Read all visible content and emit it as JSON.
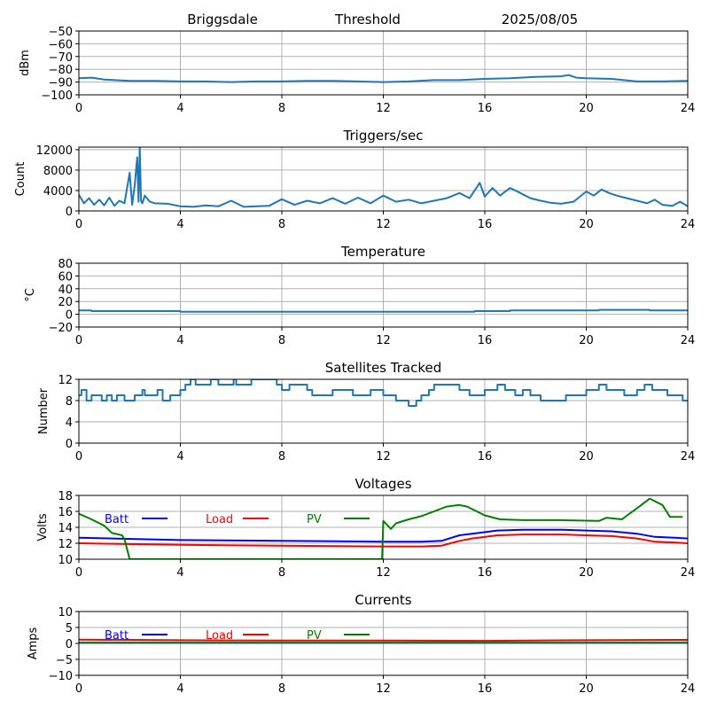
{
  "header": {
    "station": "Briggsdale",
    "mode": "Threshold",
    "date": "2025/08/05"
  },
  "chart_data": [
    {
      "type": "line",
      "title": "",
      "xlabel": "",
      "ylabel": "dBm",
      "xlim": [
        0,
        24
      ],
      "ylim": [
        -100,
        -50
      ],
      "xticks": [
        0,
        4,
        8,
        12,
        16,
        20,
        24
      ],
      "yticks": [
        -100,
        -90,
        -80,
        -70,
        -60,
        -50
      ],
      "grid": true,
      "series": [
        {
          "color": "#1f77b4",
          "x": [
            0,
            0.5,
            1,
            2,
            3,
            4,
            5,
            6,
            7,
            8,
            9,
            10,
            11,
            12,
            13,
            14,
            15,
            16,
            17,
            18,
            19,
            19.3,
            19.6,
            20,
            21,
            22,
            23,
            24
          ],
          "y": [
            -87,
            -86.5,
            -88,
            -89,
            -89,
            -89.5,
            -89.5,
            -90,
            -89.5,
            -89.5,
            -89,
            -89,
            -89.5,
            -90,
            -89.5,
            -88.5,
            -88.5,
            -87.5,
            -87,
            -86,
            -85.5,
            -84.5,
            -86.5,
            -87,
            -87.5,
            -89.5,
            -89.5,
            -89
          ]
        }
      ]
    },
    {
      "type": "line",
      "title": "Triggers/sec",
      "xlabel": "",
      "ylabel": "Count",
      "xlim": [
        0,
        24
      ],
      "ylim": [
        0,
        12500
      ],
      "xticks": [
        0,
        4,
        8,
        12,
        16,
        20,
        24
      ],
      "yticks": [
        0,
        4000,
        8000,
        12000
      ],
      "grid": true,
      "series": [
        {
          "color": "#1f77b4",
          "x": [
            0,
            0.2,
            0.4,
            0.6,
            0.8,
            1.0,
            1.2,
            1.4,
            1.6,
            1.8,
            2.0,
            2.1,
            2.2,
            2.3,
            2.35,
            2.4,
            2.45,
            2.5,
            2.6,
            2.8,
            3.0,
            3.5,
            4.0,
            4.5,
            5.0,
            5.5,
            6.0,
            6.5,
            7.0,
            7.5,
            8.0,
            8.5,
            9.0,
            9.5,
            10.0,
            10.5,
            11.0,
            11.5,
            12.0,
            12.5,
            13.0,
            13.5,
            14.0,
            14.5,
            15.0,
            15.4,
            15.8,
            16.0,
            16.3,
            16.6,
            17.0,
            17.4,
            17.8,
            18.2,
            18.6,
            19.0,
            19.5,
            20.0,
            20.3,
            20.6,
            20.9,
            21.2,
            21.6,
            22.0,
            22.4,
            22.7,
            23.0,
            23.4,
            23.7,
            24.0
          ],
          "y": [
            3200,
            1500,
            2500,
            1200,
            2200,
            1100,
            2600,
            1000,
            2000,
            1500,
            7500,
            1200,
            5000,
            10500,
            1800,
            12500,
            2000,
            1500,
            3000,
            1800,
            1500,
            1400,
            900,
            800,
            1100,
            900,
            2000,
            800,
            900,
            1000,
            2300,
            1200,
            2000,
            1500,
            2500,
            1400,
            2600,
            1500,
            3000,
            1800,
            2200,
            1500,
            2000,
            2500,
            3500,
            2500,
            5500,
            2800,
            4500,
            3000,
            4500,
            3500,
            2500,
            2000,
            1600,
            1400,
            1800,
            3800,
            3000,
            4200,
            3500,
            3000,
            2500,
            2000,
            1500,
            2200,
            1200,
            1000,
            1800,
            900
          ]
        }
      ]
    },
    {
      "type": "line",
      "title": "Temperature",
      "xlabel": "",
      "ylabel": "°C",
      "xlim": [
        0,
        24
      ],
      "ylim": [
        -20,
        80
      ],
      "xticks": [
        0,
        4,
        8,
        12,
        16,
        20,
        24
      ],
      "yticks": [
        -20,
        0,
        20,
        40,
        60,
        80
      ],
      "grid": true,
      "series": [
        {
          "color": "#1f77b4",
          "x": [
            0,
            0.5,
            0.5,
            4,
            4,
            15.6,
            15.6,
            17,
            17,
            20.5,
            20.5,
            22.5,
            22.5,
            24
          ],
          "y": [
            6,
            6,
            5,
            5,
            4,
            4,
            5,
            5,
            6,
            6,
            7,
            7,
            6,
            6
          ]
        }
      ]
    },
    {
      "type": "line",
      "title": "Satellites Tracked",
      "xlabel": "",
      "ylabel": "Number",
      "xlim": [
        0,
        24
      ],
      "ylim": [
        0,
        12
      ],
      "xticks": [
        0,
        4,
        8,
        12,
        16,
        20,
        24
      ],
      "yticks": [
        0,
        4,
        8,
        12
      ],
      "grid": true,
      "series": [
        {
          "color": "#1f77b4",
          "x": [
            0,
            0.1,
            0.1,
            0.3,
            0.3,
            0.5,
            0.5,
            0.9,
            0.9,
            1.1,
            1.1,
            1.3,
            1.3,
            1.5,
            1.5,
            1.8,
            1.8,
            2.2,
            2.2,
            2.5,
            2.5,
            2.6,
            2.6,
            3.1,
            3.1,
            3.3,
            3.3,
            3.6,
            3.6,
            4.0,
            4.0,
            4.2,
            4.2,
            4.4,
            4.4,
            4.6,
            4.6,
            5.2,
            5.2,
            5.5,
            5.5,
            6.1,
            6.1,
            6.2,
            6.2,
            6.8,
            6.8,
            7.8,
            7.8,
            8.0,
            8.0,
            8.3,
            8.3,
            9.0,
            9.0,
            9.2,
            9.2,
            10.0,
            10.0,
            10.8,
            10.8,
            11.5,
            11.5,
            12.0,
            12.0,
            12.5,
            12.5,
            13.0,
            13.0,
            13.3,
            13.3,
            13.5,
            13.5,
            13.8,
            13.8,
            14.0,
            14.0,
            15.0,
            15.0,
            15.4,
            15.4,
            16.0,
            16.0,
            16.5,
            16.5,
            16.8,
            16.8,
            17.2,
            17.2,
            17.5,
            17.5,
            17.8,
            17.8,
            18.2,
            18.2,
            19.2,
            19.2,
            20.0,
            20.0,
            20.5,
            20.5,
            20.8,
            20.8,
            21.5,
            21.5,
            22.0,
            22.0,
            22.3,
            22.3,
            22.6,
            22.6,
            23.2,
            23.2,
            23.8,
            23.8,
            24.0
          ],
          "y": [
            9,
            9,
            10,
            10,
            8,
            8,
            9,
            9,
            8,
            8,
            9,
            9,
            8,
            8,
            9,
            9,
            8,
            8,
            9,
            9,
            10,
            10,
            9,
            9,
            10,
            10,
            8,
            8,
            9,
            9,
            10,
            10,
            11,
            11,
            12,
            12,
            11,
            11,
            12,
            12,
            11,
            11,
            12,
            12,
            11,
            11,
            12,
            12,
            11,
            11,
            10,
            10,
            11,
            11,
            10,
            10,
            9,
            9,
            10,
            10,
            9,
            9,
            10,
            10,
            9,
            9,
            8,
            8,
            7,
            7,
            8,
            8,
            9,
            9,
            10,
            10,
            11,
            11,
            10,
            10,
            9,
            9,
            10,
            10,
            11,
            11,
            10,
            10,
            9,
            9,
            10,
            10,
            9,
            9,
            8,
            8,
            9,
            9,
            10,
            10,
            11,
            11,
            10,
            10,
            9,
            9,
            10,
            10,
            11,
            11,
            10,
            10,
            9,
            9,
            8,
            8
          ]
        }
      ]
    },
    {
      "type": "line",
      "title": "Voltages",
      "xlabel": "",
      "ylabel": "Volts",
      "xlim": [
        0,
        24
      ],
      "ylim": [
        10,
        18
      ],
      "xticks": [
        0,
        4,
        8,
        12,
        16,
        20,
        24
      ],
      "yticks": [
        10,
        12,
        14,
        16,
        18
      ],
      "grid": true,
      "series": [
        {
          "name": "Batt",
          "color": "#0000ff",
          "x": [
            0,
            4,
            8,
            12,
            13.5,
            14.3,
            15,
            15.5,
            16.5,
            17.5,
            19,
            20,
            21,
            22,
            22.7,
            23.5,
            24
          ],
          "y": [
            12.7,
            12.4,
            12.3,
            12.2,
            12.2,
            12.3,
            13.0,
            13.2,
            13.6,
            13.7,
            13.7,
            13.6,
            13.5,
            13.2,
            12.8,
            12.7,
            12.6
          ]
        },
        {
          "name": "Load",
          "color": "#ff0000",
          "x": [
            0,
            4,
            8,
            12,
            13.5,
            14.3,
            15,
            15.5,
            16.5,
            17.5,
            19,
            20,
            21,
            22,
            22.7,
            23.5,
            24
          ],
          "y": [
            12.0,
            11.8,
            11.7,
            11.6,
            11.6,
            11.7,
            12.3,
            12.6,
            13.0,
            13.1,
            13.1,
            13.0,
            12.9,
            12.6,
            12.2,
            12.1,
            12.0
          ]
        },
        {
          "name": "PV",
          "color": "#008000",
          "x": [
            0,
            0.5,
            1.0,
            1.3,
            1.7,
            1.8,
            2.0,
            11.95,
            12.0,
            12.3,
            12.5,
            13.0,
            13.5,
            14.0,
            14.5,
            15.0,
            15.3,
            16.0,
            16.6,
            17.5,
            19.0,
            20.5,
            20.8,
            21.4,
            22.0,
            22.5,
            23.0,
            23.3,
            23.8
          ],
          "y": [
            15.7,
            15.0,
            14.2,
            13.3,
            13.0,
            12.5,
            10.0,
            10.0,
            14.8,
            13.8,
            14.5,
            15.0,
            15.4,
            16.0,
            16.6,
            16.8,
            16.6,
            15.5,
            15.0,
            14.9,
            14.9,
            14.8,
            15.2,
            15.0,
            16.4,
            17.6,
            16.8,
            15.3,
            15.3
          ]
        }
      ]
    },
    {
      "type": "line",
      "title": "Currents",
      "xlabel": "",
      "ylabel": "Amps",
      "xlim": [
        0,
        24
      ],
      "ylim": [
        -10,
        10
      ],
      "xticks": [
        0,
        4,
        8,
        12,
        16,
        20,
        24
      ],
      "yticks": [
        -10,
        -5,
        0,
        5,
        10
      ],
      "grid": true,
      "series": [
        {
          "name": "Batt",
          "color": "#0000ff",
          "x": [
            0,
            24
          ],
          "y": [
            0.2,
            0.2
          ]
        },
        {
          "name": "Load",
          "color": "#ff0000",
          "x": [
            0,
            4,
            8,
            12,
            16,
            20,
            24
          ],
          "y": [
            1.2,
            1.0,
            0.9,
            0.9,
            0.8,
            1.0,
            1.1
          ]
        },
        {
          "name": "PV",
          "color": "#008000",
          "x": [
            0,
            24
          ],
          "y": [
            0.2,
            0.2
          ]
        }
      ]
    }
  ]
}
